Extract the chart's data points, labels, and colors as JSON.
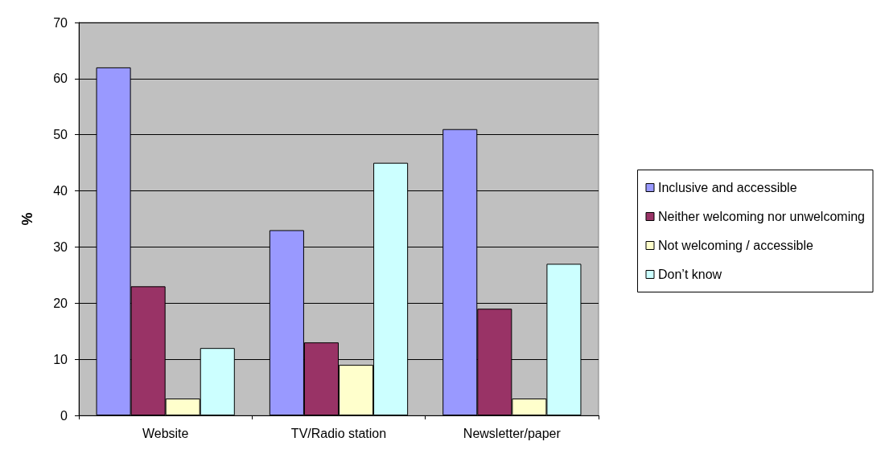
{
  "chart_data": {
    "type": "bar",
    "ylabel": "%",
    "categories": [
      "Website",
      "TV/Radio station",
      "Newsletter/paper"
    ],
    "series": [
      {
        "name": "Inclusive and accessible",
        "color": "#9999ff",
        "values": [
          62,
          33,
          51
        ]
      },
      {
        "name": "Neither welcoming nor unwelcoming",
        "color": "#993366",
        "values": [
          23,
          13,
          19
        ]
      },
      {
        "name": "Not welcoming / accessible",
        "color": "#ffffcc",
        "values": [
          3,
          9,
          3
        ]
      },
      {
        "name": "Don’t know",
        "color": "#ccffff",
        "values": [
          12,
          45,
          27
        ]
      }
    ],
    "ylim": [
      0,
      70
    ],
    "yticks": [
      0,
      10,
      20,
      30,
      40,
      50,
      60,
      70
    ],
    "grid": "y",
    "legend": "right"
  }
}
